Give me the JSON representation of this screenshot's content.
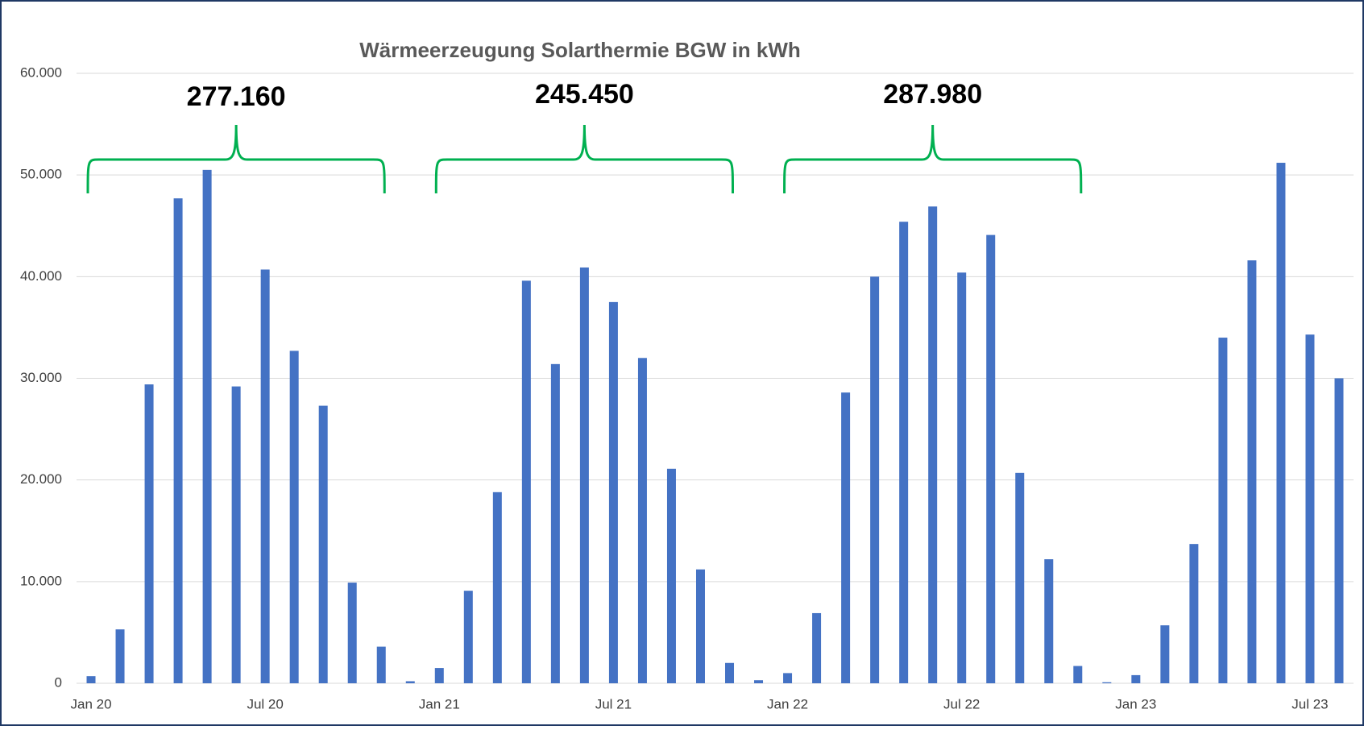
{
  "chart_data": {
    "type": "bar",
    "title": "Wärmeerzeugung Solarthermie BGW in kWh",
    "categories": [
      "Jan 20",
      null,
      null,
      null,
      null,
      null,
      "Jul 20",
      null,
      null,
      null,
      null,
      null,
      "Jan 21",
      null,
      null,
      null,
      null,
      null,
      "Jul 21",
      null,
      null,
      null,
      null,
      null,
      "Jan 22",
      null,
      null,
      null,
      null,
      null,
      "Jul 22",
      null,
      null,
      null,
      null,
      null,
      "Jan 23",
      null,
      null,
      null,
      null,
      null,
      "Jul 23",
      null
    ],
    "values": [
      700,
      5300,
      29400,
      47700,
      50500,
      29200,
      40700,
      32700,
      27300,
      9900,
      3600,
      200,
      1500,
      9100,
      18800,
      39600,
      31400,
      40900,
      37500,
      32000,
      21100,
      11200,
      2000,
      300,
      1000,
      6900,
      28600,
      40000,
      45400,
      46900,
      40400,
      44100,
      20700,
      12200,
      1700,
      100,
      800,
      5700,
      13700,
      34000,
      41600,
      51200,
      34300,
      30000
    ],
    "color": "#4472c4",
    "ylim": [
      0,
      60000
    ],
    "yticks": [
      0,
      {
        "value": 10000,
        "label": "10.000"
      },
      {
        "value": 20000,
        "label": "20.000"
      },
      {
        "value": 30000,
        "label": "30.000"
      },
      {
        "value": 40000,
        "label": "40.000"
      },
      {
        "value": 50000,
        "label": "50.000"
      },
      {
        "value": 60000,
        "label": "60.000"
      }
    ],
    "grid": true,
    "annotations": [
      "277.160",
      "245.450",
      "287.980"
    ],
    "annotation_color": "#00b050"
  }
}
